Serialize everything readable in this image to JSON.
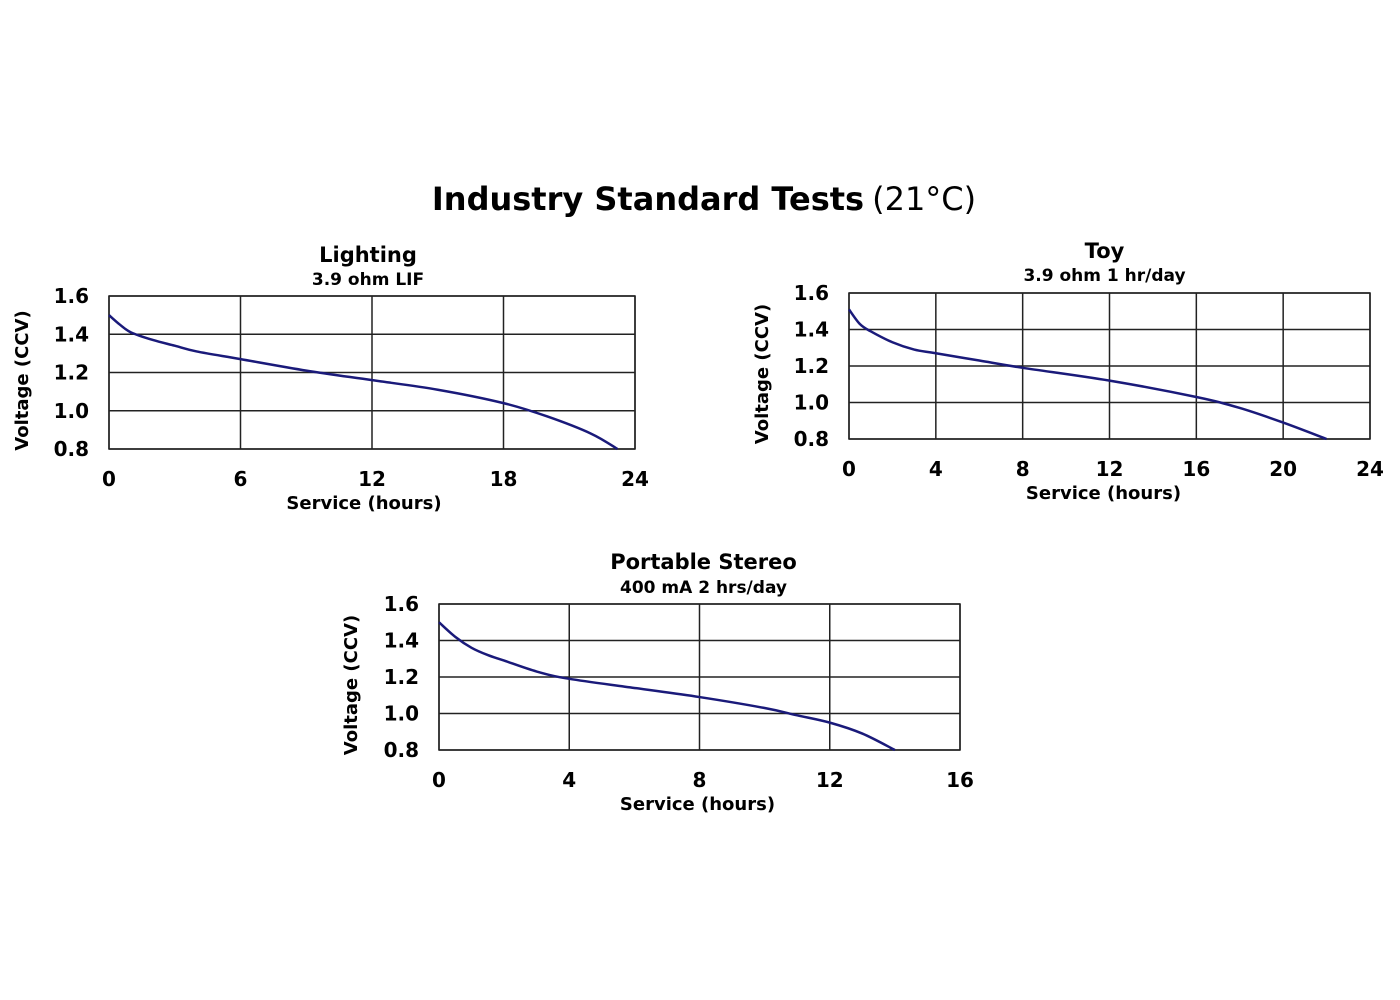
{
  "title_bold": "Industry Standard Tests",
  "title_normal": "(21°C)",
  "line_color": "#1a1a7a",
  "chart_data": [
    {
      "type": "line",
      "title": "Lighting",
      "subtitle": "3.9 ohm LIF",
      "xlabel": "Service (hours)",
      "ylabel": "Voltage (CCV)",
      "xlim": [
        0,
        24
      ],
      "ylim": [
        0.8,
        1.6
      ],
      "xticks": [
        0,
        6,
        12,
        18,
        24
      ],
      "yticks": [
        "0.8",
        "1.0",
        "1.2",
        "1.4",
        "1.6"
      ],
      "grid": true,
      "x": [
        0,
        0.5,
        1,
        2,
        3,
        4,
        6,
        9,
        12,
        15,
        18,
        20,
        22,
        23.2
      ],
      "y": [
        1.5,
        1.45,
        1.41,
        1.37,
        1.34,
        1.31,
        1.27,
        1.21,
        1.16,
        1.11,
        1.04,
        0.97,
        0.88,
        0.8
      ]
    },
    {
      "type": "line",
      "title": "Toy",
      "subtitle": "3.9 ohm 1 hr/day",
      "xlabel": "Service (hours)",
      "ylabel": "Voltage (CCV)",
      "xlim": [
        0,
        24
      ],
      "ylim": [
        0.8,
        1.6
      ],
      "xticks": [
        0,
        4,
        8,
        12,
        16,
        20,
        24
      ],
      "yticks": [
        "0.8",
        "1.0",
        "1.2",
        "1.4",
        "1.6"
      ],
      "grid": true,
      "x": [
        0,
        0.5,
        1,
        2,
        3,
        4,
        6,
        8,
        12,
        16,
        18,
        20,
        22
      ],
      "y": [
        1.51,
        1.43,
        1.39,
        1.33,
        1.29,
        1.27,
        1.23,
        1.19,
        1.12,
        1.03,
        0.97,
        0.89,
        0.8
      ]
    },
    {
      "type": "line",
      "title": "Portable Stereo",
      "subtitle": "400 mA 2 hrs/day",
      "xlabel": "Service (hours)",
      "ylabel": "Voltage (CCV)",
      "xlim": [
        0,
        16
      ],
      "ylim": [
        0.8,
        1.6
      ],
      "xticks": [
        0,
        4,
        8,
        12,
        16
      ],
      "yticks": [
        "0.8",
        "1.0",
        "1.2",
        "1.4",
        "1.6"
      ],
      "grid": true,
      "x": [
        0,
        0.5,
        1,
        1.5,
        2,
        3,
        4,
        6,
        8,
        10,
        11,
        12,
        13,
        14
      ],
      "y": [
        1.5,
        1.42,
        1.36,
        1.32,
        1.29,
        1.23,
        1.19,
        1.14,
        1.09,
        1.03,
        0.99,
        0.95,
        0.89,
        0.8
      ]
    }
  ]
}
